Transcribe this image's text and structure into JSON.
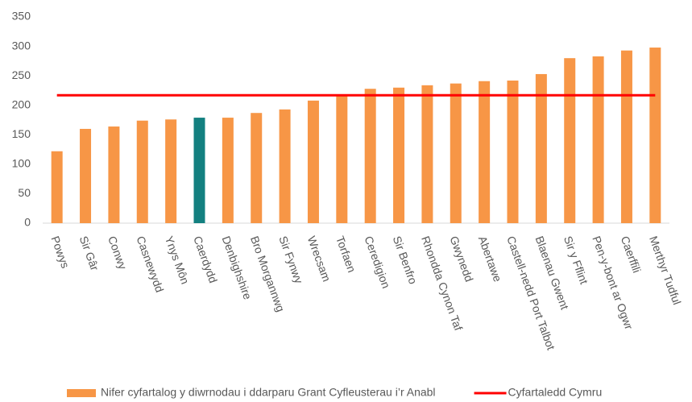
{
  "chart_data": {
    "type": "bar",
    "categories": [
      "Powys",
      "Sir Gâr",
      "Conwy",
      "Casnewydd",
      "Ynys Môn",
      "Caerdydd",
      "Denbighshire",
      "Bro Morgannwg",
      "Sir Fynwy",
      "Wrecsam",
      "Torfaen",
      "Ceredigion",
      "Sir Benfro",
      "Rhondda Cynon Taf",
      "Gwynedd",
      "Abertawe",
      "Castell-nedd Port Talbot",
      "Blaenau Gwent",
      "Sir y Fflint",
      "Pen-y-bont ar Ogwr",
      "Caerffili",
      "Merthyr Tudful"
    ],
    "series": [
      {
        "name": "Nifer cyfartalog y diwrnodau i ddarparu Grant Cyfleusterau i’r Anabl",
        "color": "#f79646",
        "colors": [
          "#f79646",
          "#f79646",
          "#f79646",
          "#f79646",
          "#f79646",
          "#138080",
          "#f79646",
          "#f79646",
          "#f79646",
          "#f79646",
          "#f79646",
          "#f79646",
          "#f79646",
          "#f79646",
          "#f79646",
          "#f79646",
          "#f79646",
          "#f79646",
          "#f79646",
          "#f79646",
          "#f79646",
          "#f79646"
        ],
        "values": [
          122,
          160,
          164,
          174,
          176,
          179,
          179,
          187,
          193,
          208,
          217,
          228,
          230,
          234,
          237,
          241,
          242,
          253,
          280,
          283,
          293,
          298
        ]
      },
      {
        "name": "Cyfartaledd Cymru",
        "type": "line",
        "color": "#ff0000",
        "value": 217
      }
    ],
    "ylim": [
      0,
      350
    ],
    "yticks": [
      0,
      50,
      100,
      150,
      200,
      250,
      300,
      350
    ],
    "grid": false
  }
}
